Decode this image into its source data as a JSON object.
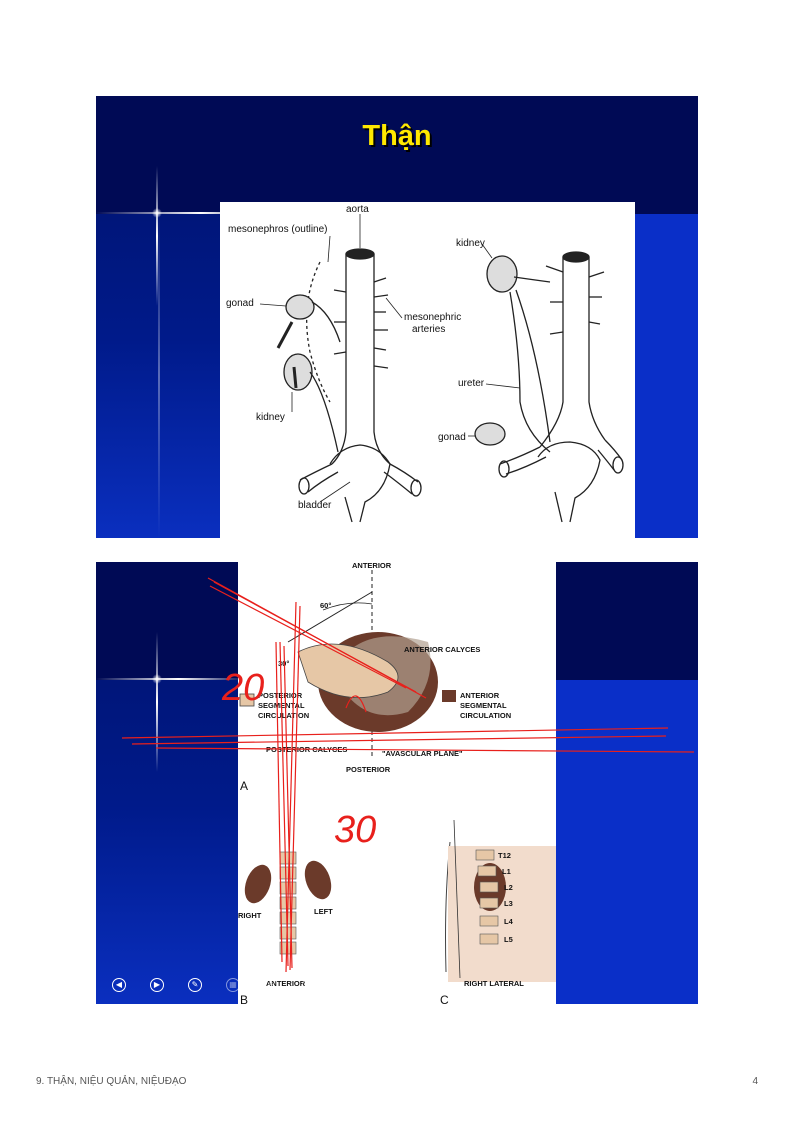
{
  "slide1": {
    "title": "Thận",
    "labels": {
      "aorta": "aorta",
      "mesonephros": "mesonephros (outline)",
      "gonad_left": "gonad",
      "mesonephric1": "mesonephric",
      "mesonephric2": "arteries",
      "kidney_left": "kidney",
      "bladder": "bladder",
      "kidney_right": "kidney",
      "ureter": "ureter",
      "gonad_right": "gonad"
    }
  },
  "slide2": {
    "labels": {
      "anterior_top": "ANTERIOR",
      "angle60": "60°",
      "angle30": "30°",
      "anterior_calyces": "ANTERIOR CALYCES",
      "posterior_seg1": "POSTERIOR",
      "posterior_seg2": "SEGMENTAL",
      "posterior_seg3": "CIRCULATION",
      "anterior_seg1": "ANTERIOR",
      "anterior_seg2": "SEGMENTAL",
      "anterior_seg3": "CIRCULATION",
      "posterior_calyces": "POSTERIOR CALYCES",
      "avascular": "\"AVASCULAR PLANE\"",
      "posterior": "POSTERIOR",
      "panel_a": "A",
      "panel_b": "B",
      "panel_c": "C",
      "right": "RIGHT",
      "left": "LEFT",
      "anterior_bottom": "ANTERIOR",
      "right_lateral": "RIGHT LATERAL",
      "t12": "T12",
      "l1": "L1",
      "l2": "L2",
      "l3": "L3",
      "l4": "L4",
      "l5": "L5"
    },
    "handwriting": {
      "angle_a": "20",
      "angle_b": "30"
    }
  },
  "footer": {
    "left": "9. THẬN, NIỆU QUẢN, NIỆUĐẠO",
    "right": "4"
  },
  "colors": {
    "slide_bg": "#001a8a",
    "title": "#ffe800",
    "annotation": "#e8201c",
    "kidney_dark": "#6b3a2a"
  }
}
